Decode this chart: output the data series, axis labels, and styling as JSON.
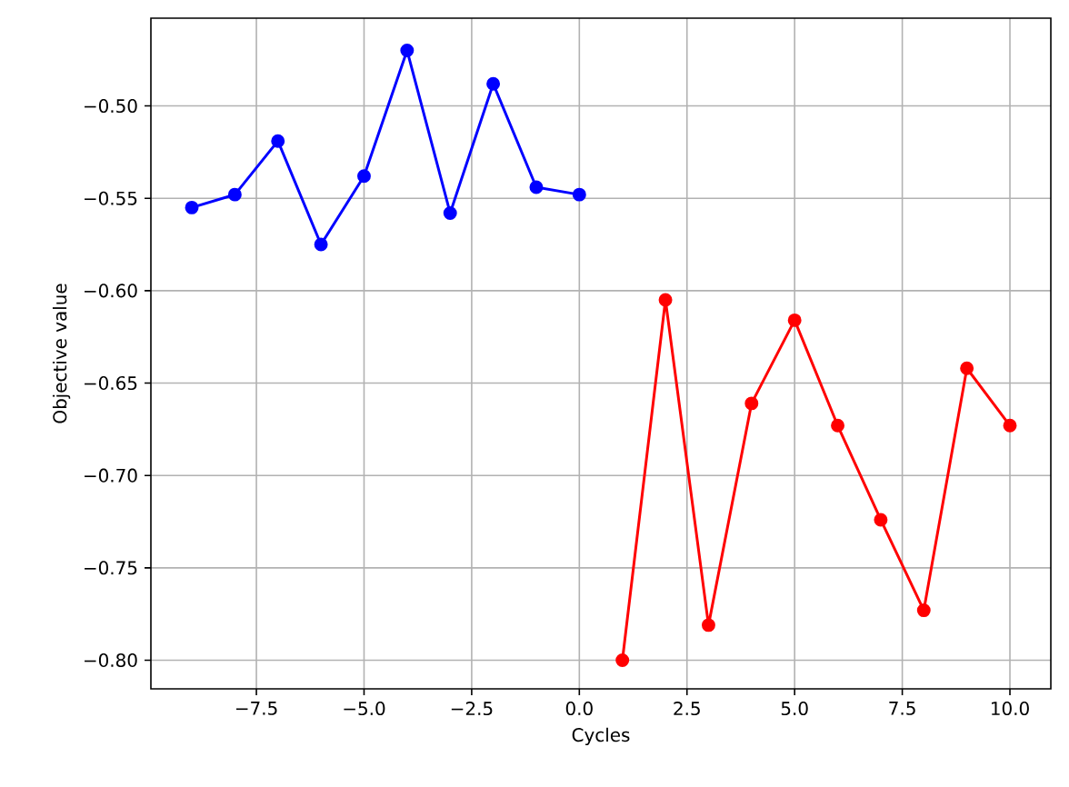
{
  "chart_data": {
    "type": "line",
    "xlabel": "Cycles",
    "ylabel": "Objective value",
    "series": [
      {
        "color": "#0000ff",
        "x": [
          -9,
          -8,
          -7,
          -6,
          -5,
          -4,
          -3,
          -2,
          -1,
          0
        ],
        "values": [
          -0.555,
          -0.548,
          -0.519,
          -0.575,
          -0.538,
          -0.47,
          -0.558,
          -0.488,
          -0.544,
          -0.548
        ]
      },
      {
        "color": "#ff0000",
        "x": [
          1,
          2,
          3,
          4,
          5,
          6,
          7,
          8,
          9,
          10
        ],
        "values": [
          -0.8,
          -0.605,
          -0.781,
          -0.661,
          -0.616,
          -0.673,
          -0.724,
          -0.773,
          -0.642,
          -0.673
        ]
      }
    ],
    "xlim": [
      -9.95,
      10.95
    ],
    "ylim": [
      -0.8155,
      -0.4525
    ],
    "xticks": [
      {
        "value": -7.5,
        "label": "−7.5"
      },
      {
        "value": -5.0,
        "label": "−5.0"
      },
      {
        "value": -2.5,
        "label": "−2.5"
      },
      {
        "value": 0.0,
        "label": "0.0"
      },
      {
        "value": 2.5,
        "label": "2.5"
      },
      {
        "value": 5.0,
        "label": "5.0"
      },
      {
        "value": 7.5,
        "label": "7.5"
      },
      {
        "value": 10.0,
        "label": "10.0"
      }
    ],
    "yticks": [
      {
        "value": -0.8,
        "label": "−0.80"
      },
      {
        "value": -0.75,
        "label": "−0.75"
      },
      {
        "value": -0.7,
        "label": "−0.70"
      },
      {
        "value": -0.65,
        "label": "−0.65"
      },
      {
        "value": -0.6,
        "label": "−0.60"
      },
      {
        "value": -0.55,
        "label": "−0.55"
      },
      {
        "value": -0.5,
        "label": "−0.50"
      }
    ],
    "grid": true,
    "marker": "circle",
    "line_style": "solid"
  }
}
